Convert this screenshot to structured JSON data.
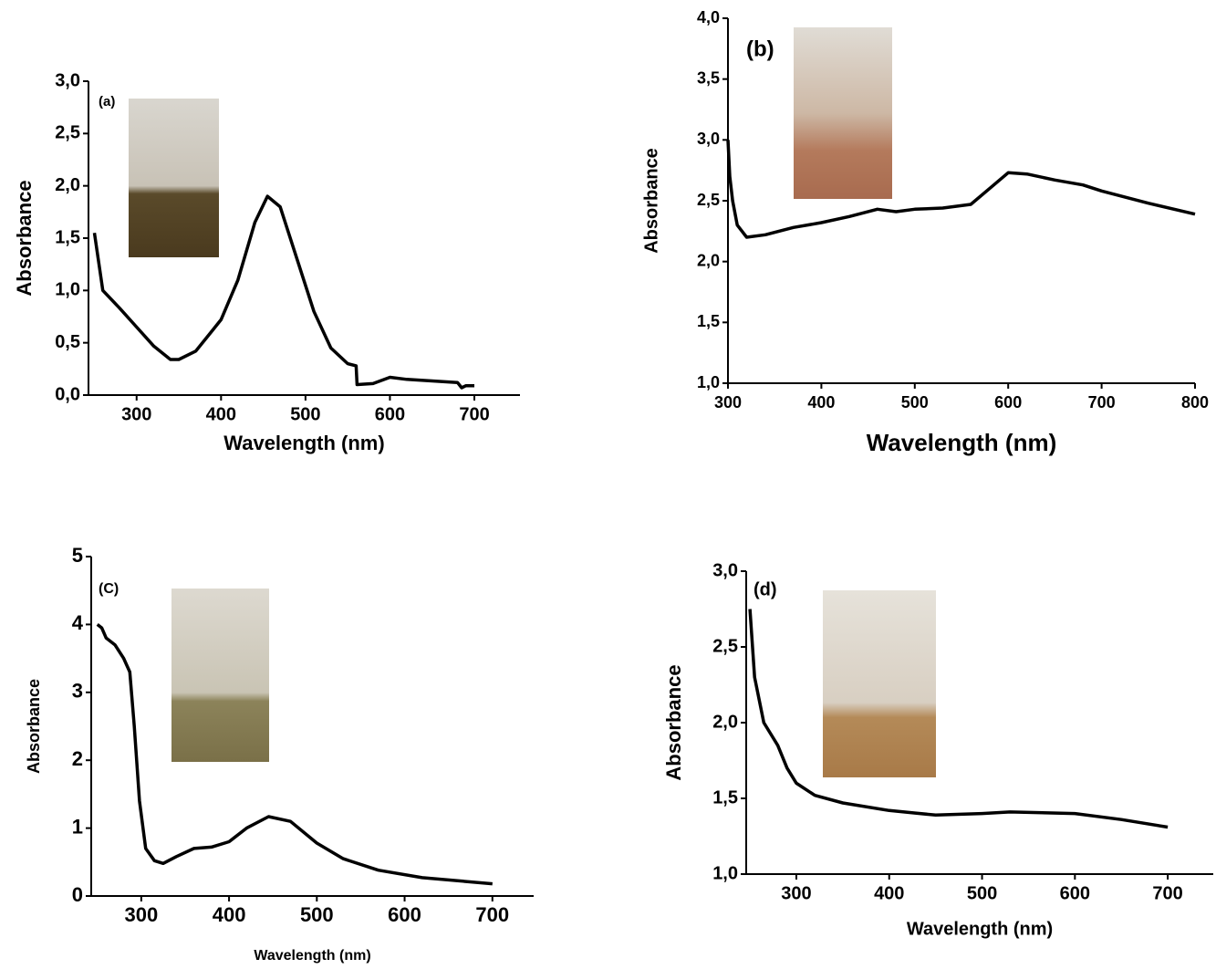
{
  "chart_data": [
    {
      "type": "line",
      "label": "(a)",
      "xlabel": "Wavelength (nm)",
      "ylabel": "Absorbance",
      "color": "#000000",
      "x": [
        250,
        260,
        280,
        300,
        320,
        340,
        350,
        370,
        390,
        400,
        420,
        440,
        455,
        470,
        490,
        510,
        530,
        550,
        560,
        561,
        580,
        600,
        620,
        680,
        685,
        690,
        700
      ],
      "values": [
        1.55,
        1.0,
        0.83,
        0.65,
        0.47,
        0.34,
        0.34,
        0.42,
        0.62,
        0.72,
        1.1,
        1.65,
        1.9,
        1.8,
        1.3,
        0.8,
        0.45,
        0.3,
        0.28,
        0.1,
        0.11,
        0.17,
        0.15,
        0.12,
        0.07,
        0.09,
        0.09
      ],
      "xlim": [
        243,
        754
      ],
      "ylim": [
        0,
        3
      ],
      "xticks": [
        300,
        400,
        500,
        600,
        700
      ],
      "yticks": [
        {
          "value": 0,
          "label": "0,0"
        },
        {
          "value": 0.5,
          "label": "0,5"
        },
        {
          "value": 1,
          "label": "1,0"
        },
        {
          "value": 1.5,
          "label": "1,5"
        },
        {
          "value": 2,
          "label": "2,0"
        },
        {
          "value": 2.5,
          "label": "2,5"
        },
        {
          "value": 3,
          "label": "3,0"
        }
      ]
    },
    {
      "type": "line",
      "label": "(b)",
      "xlabel": "Wavelength (nm)",
      "ylabel": "Absorbance",
      "color": "#000000",
      "x": [
        300,
        302,
        305,
        310,
        320,
        340,
        370,
        400,
        430,
        460,
        480,
        500,
        530,
        560,
        580,
        600,
        620,
        650,
        680,
        700,
        750,
        800
      ],
      "values": [
        3.0,
        2.7,
        2.5,
        2.3,
        2.2,
        2.22,
        2.28,
        2.32,
        2.37,
        2.43,
        2.41,
        2.43,
        2.44,
        2.47,
        2.6,
        2.73,
        2.72,
        2.67,
        2.63,
        2.58,
        2.48,
        2.39
      ],
      "xlim": [
        300,
        800
      ],
      "ylim": [
        1,
        4
      ],
      "xticks": [
        300,
        400,
        500,
        600,
        700,
        800
      ],
      "yticks": [
        {
          "value": 1,
          "label": "1,0"
        },
        {
          "value": 1.5,
          "label": "1,5"
        },
        {
          "value": 2,
          "label": "2,0"
        },
        {
          "value": 2.5,
          "label": "2,5"
        },
        {
          "value": 3,
          "label": "3,0"
        },
        {
          "value": 3.5,
          "label": "3,5"
        },
        {
          "value": 4,
          "label": "4,0"
        }
      ]
    },
    {
      "type": "line",
      "label": "(C)",
      "xlabel": "Wavelength (nm)",
      "ylabel": "Absorbance",
      "color": "#000000",
      "x": [
        250,
        255,
        260,
        270,
        280,
        287,
        292,
        298,
        305,
        315,
        325,
        340,
        360,
        380,
        400,
        420,
        445,
        470,
        500,
        530,
        570,
        620,
        700
      ],
      "values": [
        4.0,
        3.95,
        3.8,
        3.7,
        3.5,
        3.3,
        2.5,
        1.4,
        0.7,
        0.52,
        0.48,
        0.58,
        0.7,
        0.72,
        0.8,
        1.0,
        1.17,
        1.1,
        0.78,
        0.55,
        0.38,
        0.27,
        0.18
      ],
      "xlim": [
        243,
        747
      ],
      "ylim": [
        0,
        5
      ],
      "xticks": [
        300,
        400,
        500,
        600,
        700
      ],
      "yticks": [
        0,
        1,
        2,
        3,
        4,
        5
      ]
    },
    {
      "type": "line",
      "label": "(d)",
      "xlabel": "Wavelength (nm)",
      "ylabel": "Absorbance",
      "color": "#000000",
      "x": [
        250,
        255,
        265,
        280,
        290,
        300,
        320,
        350,
        400,
        450,
        500,
        530,
        600,
        650,
        700
      ],
      "values": [
        2.75,
        2.3,
        2.0,
        1.85,
        1.7,
        1.6,
        1.52,
        1.47,
        1.42,
        1.39,
        1.4,
        1.41,
        1.4,
        1.36,
        1.31
      ],
      "xlim": [
        246,
        749
      ],
      "ylim": [
        1,
        3
      ],
      "xticks": [
        300,
        400,
        500,
        600,
        700
      ],
      "yticks": [
        {
          "value": 1,
          "label": "1,0"
        },
        {
          "value": 1.5,
          "label": "1,5"
        },
        {
          "value": 2,
          "label": "2,0"
        },
        {
          "value": 2.5,
          "label": "2,5"
        },
        {
          "value": 3,
          "label": "3,0"
        }
      ]
    }
  ]
}
